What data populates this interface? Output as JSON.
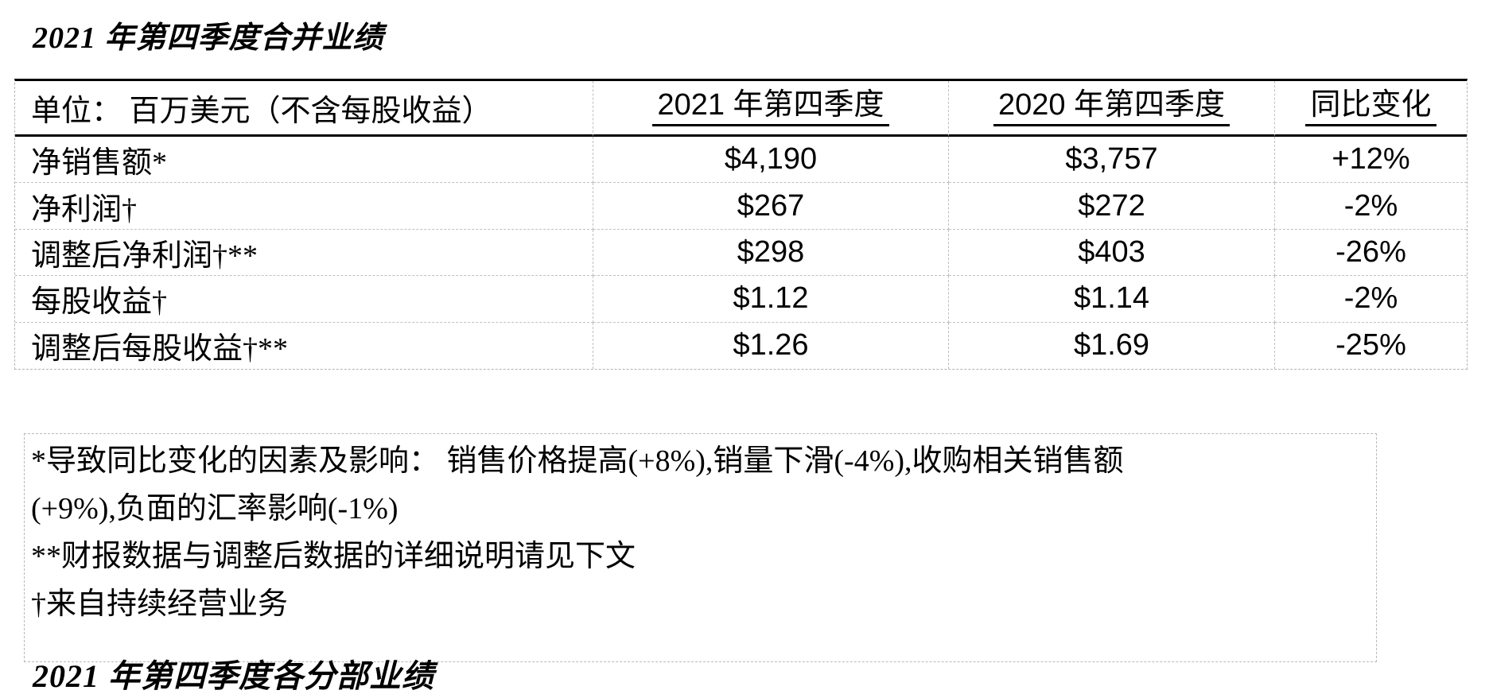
{
  "page": {
    "title": "2021 年第四季度合并业绩",
    "partial_next_heading": "2021 年第四季度各分部业绩"
  },
  "table": {
    "header": {
      "unit_label": "单位：  百万美元（不含每股收益）",
      "col_2021": "2021 年第四季度",
      "col_2020": "2020 年第四季度",
      "col_change": "同比变化"
    },
    "rows": [
      {
        "label": "净销售额*",
        "v2021": "$4,190",
        "v2020": "$3,757",
        "change": "+12%"
      },
      {
        "label": "净利润†",
        "v2021": "$267",
        "v2020": "$272",
        "change": "-2%"
      },
      {
        "label": "调整后净利润†**",
        "v2021": "$298",
        "v2020": "$403",
        "change": "-26%"
      },
      {
        "label": "每股收益†",
        "v2021": "$1.12",
        "v2020": "$1.14",
        "change": "-2%"
      },
      {
        "label": "调整后每股收益†**",
        "v2021": "$1.26",
        "v2020": "$1.69",
        "change": "-25%"
      }
    ]
  },
  "footnotes": {
    "lines": [
      "*导致同比变化的因素及影响：  销售价格提高(+8%),销量下滑(-4%),收购相关销售额",
      "(+9%),负面的汇率影响(-1%)",
      "**财报数据与调整后数据的详细说明请见下文",
      "†来自持续经营业务"
    ]
  },
  "colors": {
    "text": "#000000",
    "solid_rule": "#000000",
    "dashed_rule": "#b3b3b3"
  }
}
